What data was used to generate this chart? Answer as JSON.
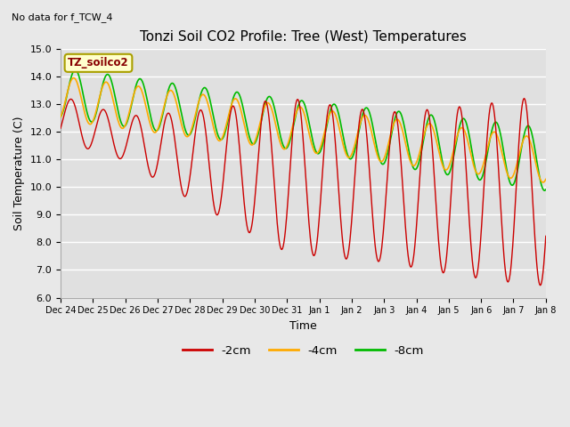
{
  "title": "Tonzi Soil CO2 Profile: Tree (West) Temperatures",
  "subtitle": "No data for f_TCW_4",
  "ylabel": "Soil Temperature (C)",
  "xlabel": "Time",
  "legend_label": "TZ_soilco2",
  "ylim": [
    6.0,
    15.0
  ],
  "yticks": [
    6.0,
    7.0,
    8.0,
    9.0,
    10.0,
    11.0,
    12.0,
    13.0,
    14.0,
    15.0
  ],
  "xtick_labels": [
    "Dec 24",
    "Dec 25",
    "Dec 26",
    "Dec 27",
    "Dec 28",
    "Dec 29",
    "Dec 30",
    "Dec 31",
    "Jan 1",
    "Jan 2",
    "Jan 3",
    "Jan 4",
    "Jan 5",
    "Jan 6",
    "Jan 7",
    "Jan 8"
  ],
  "color_2cm": "#cc0000",
  "color_4cm": "#ffaa00",
  "color_8cm": "#00bb00",
  "fig_bg": "#e8e8e8",
  "axes_bg": "#e0e0e0",
  "grid_color": "#ffffff",
  "title_fontsize": 11,
  "axis_fontsize": 9,
  "tick_fontsize": 8,
  "legend_box_fc": "#ffffcc",
  "legend_box_ec": "#aaa000",
  "legend_text_color": "#880000"
}
